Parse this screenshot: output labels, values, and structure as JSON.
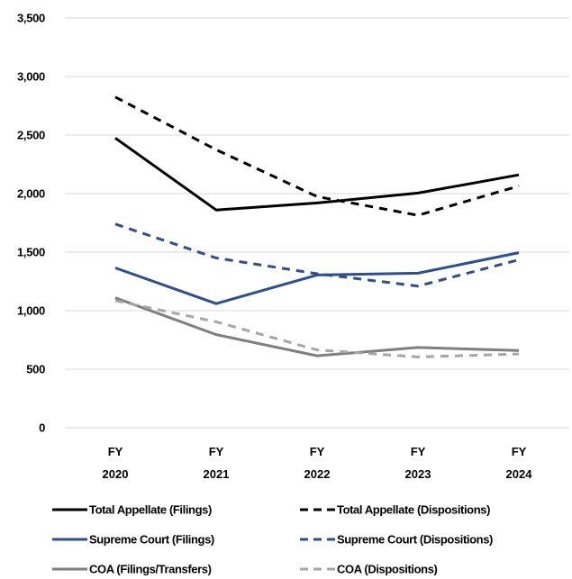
{
  "chart_data": {
    "type": "line",
    "categories": [
      [
        "FY",
        "2020"
      ],
      [
        "FY",
        "2021"
      ],
      [
        "FY",
        "2022"
      ],
      [
        "FY",
        "2023"
      ],
      [
        "FY",
        "2024"
      ]
    ],
    "y_ticks": [
      "0",
      "500",
      "1,000",
      "1,500",
      "2,000",
      "2,500",
      "3,000",
      "3,500"
    ],
    "ylim": [
      0,
      3500
    ],
    "grid": "horizontal",
    "legend_position": "bottom",
    "series": [
      {
        "name": "Total Appellate (Filings)",
        "color": "#000000",
        "dash": "solid",
        "values": [
          2475,
          1860,
          1920,
          2005,
          2160
        ]
      },
      {
        "name": "Total Appellate (Dispositions)",
        "color": "#000000",
        "dash": "dashed",
        "values": [
          2825,
          2375,
          1975,
          1815,
          2065
        ]
      },
      {
        "name": "Supreme Court (Filings)",
        "color": "#2e4f8f",
        "dash": "solid",
        "values": [
          1365,
          1060,
          1305,
          1320,
          1495
        ]
      },
      {
        "name": "Supreme Court (Dispositions)",
        "color": "#2e4f8f",
        "dash": "dashed",
        "values": [
          1740,
          1450,
          1315,
          1210,
          1435
        ]
      },
      {
        "name": "COA (Filings/Transfers)",
        "color": "#7f7f7f",
        "dash": "solid",
        "values": [
          1110,
          795,
          615,
          685,
          660
        ]
      },
      {
        "name": "COA (Dispositions)",
        "color": "#a6a6a6",
        "dash": "dashed",
        "values": [
          1085,
          905,
          665,
          605,
          630
        ]
      }
    ]
  }
}
